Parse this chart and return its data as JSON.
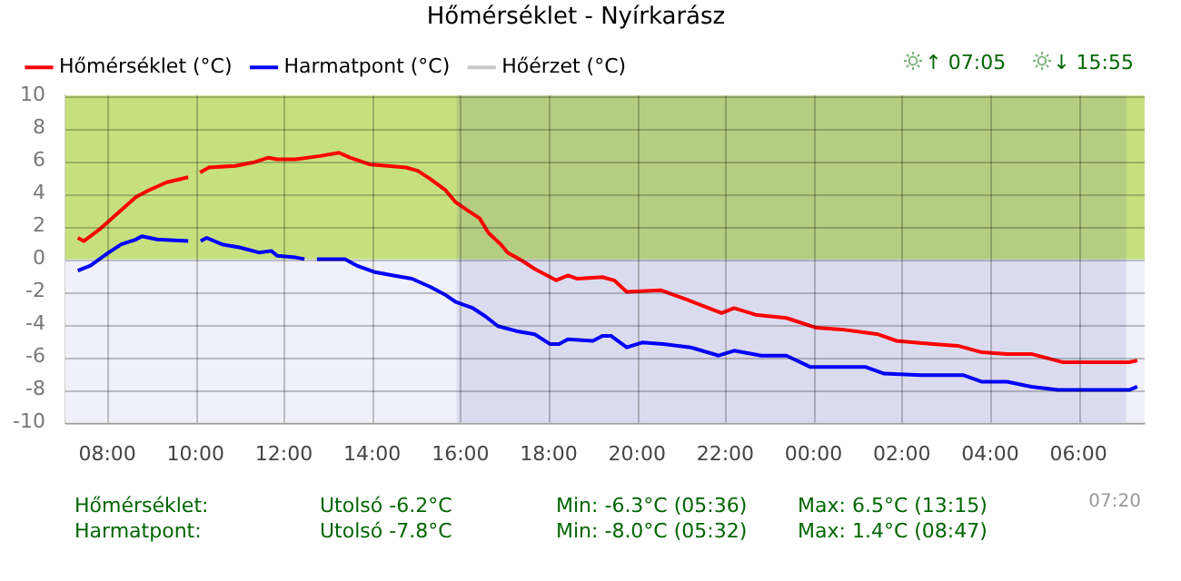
{
  "chart_data": {
    "type": "line",
    "title": "Hőmérséklet - Nyírkarász",
    "xlim": [
      "--01-01T07:03",
      "--01-02T07:30"
    ],
    "xticks": [
      {
        "value": "--01-01T08:00",
        "label": "08:00"
      },
      {
        "value": "--01-01T10:00",
        "label": "10:00"
      },
      {
        "value": "--01-01T12:00",
        "label": "12:00"
      },
      {
        "value": "--01-01T14:00",
        "label": "14:00"
      },
      {
        "value": "--01-01T16:00",
        "label": "16:00"
      },
      {
        "value": "--01-01T18:00",
        "label": "18:00"
      },
      {
        "value": "--01-01T20:00",
        "label": "20:00"
      },
      {
        "value": "--01-01T22:00",
        "label": "22:00"
      },
      {
        "value": "--01-02T00:00",
        "label": "00:00"
      },
      {
        "value": "--01-02T02:00",
        "label": "02:00"
      },
      {
        "value": "--01-02T04:00",
        "label": "04:00"
      },
      {
        "value": "--01-02T06:00",
        "label": "06:00"
      }
    ],
    "ylim": [
      -10,
      10
    ],
    "yticks": [
      -10,
      -8,
      -6,
      -4,
      -2,
      0,
      2,
      4,
      6,
      8,
      10
    ],
    "series": [
      {
        "name": "Hőmérséklet (°C)",
        "color": "#ff0000",
        "x": [
          "--01-01T07:20",
          "--01-01T07:28",
          "--01-01T07:49",
          "--01-01T08:14",
          "--01-01T08:39",
          "--01-01T08:56",
          "--01-01T09:21",
          "--01-01T09:50",
          "--01-01T09:57",
          "--01-01T10:06",
          "--01-01T10:18",
          "--01-01T10:54",
          "--01-01T11:18",
          "--01-01T11:39",
          "--01-01T11:51",
          "--01-01T12:16",
          "--01-01T12:49",
          "--01-01T13:15",
          "--01-01T13:30",
          "--01-01T13:56",
          "--01-01T14:21",
          "--01-01T14:46",
          "--01-01T15:02",
          "--01-01T15:19",
          "--01-01T15:40",
          "--01-01T15:53",
          "--01-01T16:09",
          "--01-01T16:26",
          "--01-01T16:38",
          "--01-01T16:55",
          "--01-01T17:04",
          "--01-01T17:24",
          "--01-01T17:41",
          "--01-01T17:58",
          "--01-01T18:10",
          "--01-01T18:26",
          "--01-01T18:39",
          "--01-01T19:13",
          "--01-01T19:29",
          "--01-01T19:46",
          "--01-01T20:32",
          "--01-01T21:09",
          "--01-01T21:55",
          "--01-01T22:12",
          "--01-01T22:41",
          "--01-01T23:23",
          "--01-02T00:04",
          "--01-02T00:38",
          "--01-02T01:28",
          "--01-02T01:53",
          "--01-02T02:43",
          "--01-02T03:16",
          "--01-02T03:49",
          "--01-02T04:23",
          "--01-02T04:56",
          "--01-02T05:38",
          "--01-02T06:11",
          "--01-02T07:09",
          "--01-02T07:20"
        ],
        "values": [
          1.3,
          1.1,
          1.8,
          2.8,
          3.8,
          4.2,
          4.7,
          5.0,
          null,
          5.3,
          5.6,
          5.7,
          5.9,
          6.2,
          6.1,
          6.1,
          6.3,
          6.5,
          6.2,
          5.8,
          5.7,
          5.6,
          5.4,
          4.9,
          4.2,
          3.5,
          3.0,
          2.5,
          1.6,
          0.9,
          0.4,
          -0.1,
          -0.6,
          -1.0,
          -1.3,
          -1.0,
          -1.2,
          -1.1,
          -1.3,
          -2.0,
          -1.9,
          -2.5,
          -3.3,
          -3.0,
          -3.4,
          -3.6,
          -4.2,
          -4.3,
          -4.6,
          -5.0,
          -5.2,
          -5.3,
          -5.7,
          -5.8,
          -5.8,
          -6.3,
          -6.3,
          -6.3,
          -6.2
        ]
      },
      {
        "name": "Harmatpont (°C)",
        "color": "#0000ff",
        "x": [
          "--01-01T07:20",
          "--01-01T07:37",
          "--01-01T08:02",
          "--01-01T08:19",
          "--01-01T08:39",
          "--01-01T08:47",
          "--01-01T09:08",
          "--01-01T09:50",
          "--01-01T09:57",
          "--01-01T10:07",
          "--01-01T10:15",
          "--01-01T10:36",
          "--01-01T11:01",
          "--01-01T11:26",
          "--01-01T11:43",
          "--01-01T11:51",
          "--01-01T12:16",
          "--01-01T12:28",
          "--01-01T12:36",
          "--01-01T12:45",
          "--01-01T13:23",
          "--01-01T13:39",
          "--01-01T14:04",
          "--01-01T14:29",
          "--01-01T14:54",
          "--01-01T15:19",
          "--01-01T15:40",
          "--01-01T15:53",
          "--01-01T16:17",
          "--01-01T16:34",
          "--01-01T16:51",
          "--01-01T17:16",
          "--01-01T17:41",
          "--01-01T18:02",
          "--01-01T18:14",
          "--01-01T18:26",
          "--01-01T19:00",
          "--01-01T19:13",
          "--01-01T19:25",
          "--01-01T19:46",
          "--01-01T20:07",
          "--01-01T20:36",
          "--01-01T21:13",
          "--01-01T21:51",
          "--01-01T22:12",
          "--01-01T22:49",
          "--01-01T23:23",
          "--01-01T23:56",
          "--01-02T01:11",
          "--01-02T01:36",
          "--01-02T02:26",
          "--01-02T03:24",
          "--01-02T03:49",
          "--01-02T04:23",
          "--01-02T04:56",
          "--01-02T05:32",
          "--01-02T07:09",
          "--01-02T07:20"
        ],
        "values": [
          -0.7,
          -0.4,
          0.4,
          0.9,
          1.2,
          1.4,
          1.2,
          1.1,
          null,
          1.1,
          1.3,
          0.9,
          0.7,
          0.4,
          0.5,
          0.2,
          0.1,
          0,
          null,
          0,
          0,
          -0.4,
          -0.8,
          -1.0,
          -1.2,
          -1.7,
          -2.2,
          -2.6,
          -3.0,
          -3.5,
          -4.1,
          -4.4,
          -4.6,
          -5.2,
          -5.2,
          -4.9,
          -5.0,
          -4.7,
          -4.7,
          -5.4,
          -5.1,
          -5.2,
          -5.4,
          -5.9,
          -5.6,
          -5.9,
          -5.9,
          -6.6,
          -6.6,
          -7.0,
          -7.1,
          -7.1,
          -7.5,
          -7.5,
          -7.8,
          -8.0,
          -8.0,
          -7.8
        ]
      },
      {
        "name": "Hőérzet (°C)",
        "color": "#c8c8c8"
      }
    ],
    "bands": [
      {
        "axis": "y",
        "from": 0,
        "to": 10,
        "color": "#c6e07e"
      },
      {
        "axis": "x",
        "from": "--01-01T15:55",
        "to": "--01-02T07:05",
        "color": "#2a2a90"
      }
    ],
    "annotations": [
      "↑ 07:05",
      "↓ 15:55",
      "Hőmérséklet:",
      "Utolsó -6.2°C",
      "Min: -6.3°C (05:36)",
      "Max: 6.5°C (13:15)",
      "Harmatpont:",
      "Utolsó -7.8°C",
      "Min: -8.0°C (05:32)",
      "Max: 1.4°C (08:47)",
      "07:20"
    ],
    "grid": true,
    "legend": "top left",
    "marker": "none",
    "line_style": "solid"
  }
}
